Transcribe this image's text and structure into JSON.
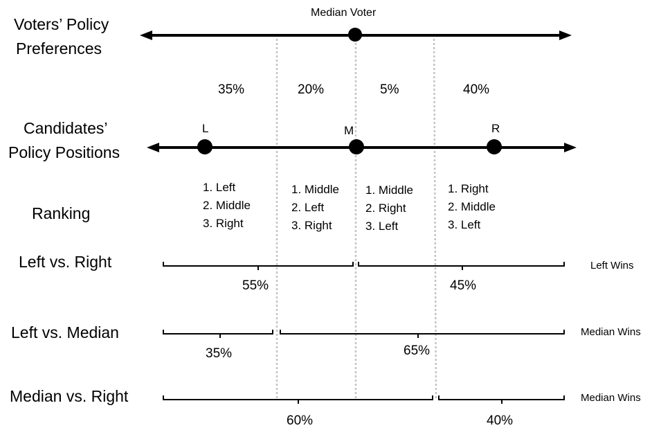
{
  "labels": {
    "voters": [
      "Voters’ Policy",
      "Preferences"
    ],
    "candidates": [
      "Candidates’",
      "Policy Positions"
    ],
    "ranking": "Ranking",
    "median_voter": "Median Voter"
  },
  "segment_shares": [
    "35%",
    "20%",
    "5%",
    "40%"
  ],
  "candidates": [
    "L",
    "M",
    "R"
  ],
  "rankings": [
    [
      "1. Left",
      "2. Middle",
      "3. Right"
    ],
    [
      "1. Middle",
      "2. Left",
      "3. Right"
    ],
    [
      "1. Middle",
      "2. Right",
      "3. Left"
    ],
    [
      "1. Right",
      "2. Middle",
      "3. Left"
    ]
  ],
  "matchups": [
    {
      "label": "Left vs. Right",
      "left_share": "55%",
      "right_share": "45%",
      "winner": "Left Wins"
    },
    {
      "label": "Left vs. Median",
      "left_share": "35%",
      "right_share": "65%",
      "winner": "Median Wins"
    },
    {
      "label": "Median vs. Right",
      "left_share": "60%",
      "right_share": "40%",
      "winner": "Median Wins"
    }
  ]
}
